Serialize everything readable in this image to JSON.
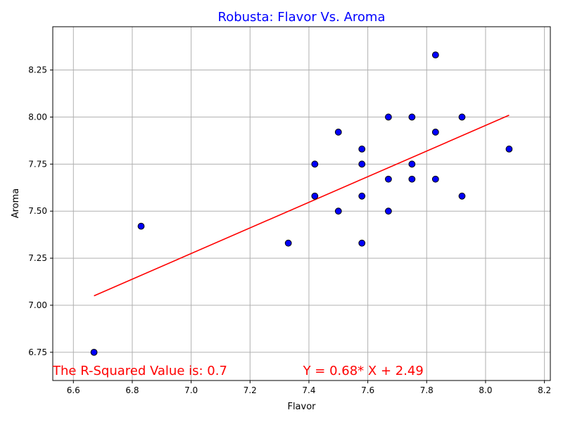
{
  "chart_data": {
    "type": "scatter",
    "title": "Robusta: Flavor Vs. Aroma",
    "xlabel": "Flavor",
    "ylabel": "Aroma",
    "xlim": [
      6.53,
      8.22
    ],
    "ylim": [
      6.6,
      8.48
    ],
    "grid": true,
    "colors": {
      "title": "#0000ff",
      "points_fill": "#0000ff",
      "points_edge": "#000000",
      "line": "#ff0000",
      "annotation": "#ff0000",
      "grid": "#b0b0b0"
    },
    "x_ticks": [
      6.6,
      6.8,
      7.0,
      7.2,
      7.4,
      7.6,
      7.8,
      8.0,
      8.2
    ],
    "x_tick_labels": [
      "6.6",
      "6.8",
      "7.0",
      "7.2",
      "7.4",
      "7.6",
      "7.8",
      "8.0",
      "8.2"
    ],
    "y_ticks": [
      6.75,
      7.0,
      7.25,
      7.5,
      7.75,
      8.0,
      8.25
    ],
    "y_tick_labels": [
      "6.75",
      "7.00",
      "7.25",
      "7.50",
      "7.75",
      "8.00",
      "8.25"
    ],
    "points": [
      {
        "x": 6.67,
        "y": 6.75
      },
      {
        "x": 6.83,
        "y": 7.42
      },
      {
        "x": 7.33,
        "y": 7.33
      },
      {
        "x": 7.42,
        "y": 7.75
      },
      {
        "x": 7.42,
        "y": 7.58
      },
      {
        "x": 7.5,
        "y": 7.92
      },
      {
        "x": 7.5,
        "y": 7.5
      },
      {
        "x": 7.58,
        "y": 7.83
      },
      {
        "x": 7.58,
        "y": 7.75
      },
      {
        "x": 7.58,
        "y": 7.58
      },
      {
        "x": 7.58,
        "y": 7.33
      },
      {
        "x": 7.67,
        "y": 8.0
      },
      {
        "x": 7.67,
        "y": 7.67
      },
      {
        "x": 7.67,
        "y": 7.5
      },
      {
        "x": 7.75,
        "y": 8.0
      },
      {
        "x": 7.75,
        "y": 7.75
      },
      {
        "x": 7.75,
        "y": 7.67
      },
      {
        "x": 7.83,
        "y": 8.33
      },
      {
        "x": 7.83,
        "y": 7.92
      },
      {
        "x": 7.83,
        "y": 7.67
      },
      {
        "x": 7.92,
        "y": 8.0
      },
      {
        "x": 7.92,
        "y": 7.58
      },
      {
        "x": 8.08,
        "y": 7.83
      }
    ],
    "regression_line": {
      "x": [
        6.67,
        8.08
      ],
      "y": [
        7.05,
        8.01
      ]
    },
    "annotations": {
      "r_squared": {
        "text": "The R-Squared Value is: 0.7",
        "x": 6.53,
        "y": 6.63
      },
      "equation": {
        "text": "Y = 0.68* X + 2.49",
        "x": 7.38,
        "y": 6.63
      }
    }
  }
}
